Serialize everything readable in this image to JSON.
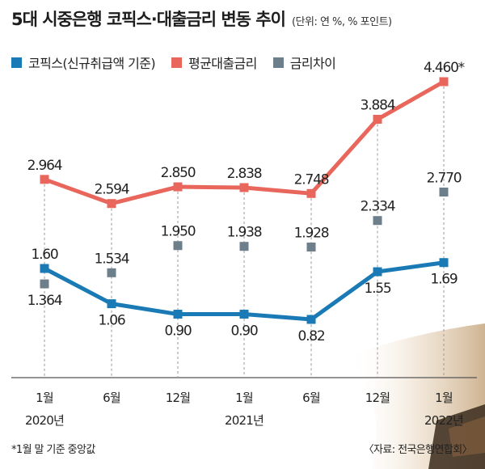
{
  "header": {
    "title": "5대 시중은행 코픽스·대출금리 변동 추이",
    "unit": "(단위: 연 %, % 포인트)"
  },
  "footnote": "*1월 말 기준 중앙값",
  "source": "〈자료: 전국은행연합회〉",
  "chart_data": {
    "type": "line",
    "categories": [
      "1월",
      "6월",
      "12월",
      "1월",
      "6월",
      "12월",
      "1월"
    ],
    "year_labels": [
      "2020년",
      "",
      "",
      "2021년",
      "",
      "",
      "2022년"
    ],
    "series": [
      {
        "name": "코픽스(신규취급액 기준)",
        "color": "#1a7ab5",
        "marker": "square",
        "values": [
          1.6,
          1.06,
          0.9,
          0.9,
          0.82,
          1.55,
          1.69
        ],
        "labels": [
          "1.60",
          "1.06",
          "0.90",
          "0.90",
          "0.82",
          "1.55",
          "1.69"
        ],
        "label_pos": [
          "above",
          "below",
          "below",
          "below",
          "below",
          "below",
          "below"
        ]
      },
      {
        "name": "평균대출금리",
        "color": "#e8665c",
        "marker": "square",
        "values": [
          2.964,
          2.594,
          2.85,
          2.838,
          2.748,
          3.884,
          4.46
        ],
        "labels": [
          "2.964",
          "2.594",
          "2.850",
          "2.838",
          "2.748",
          "3.884",
          "4.460*"
        ],
        "label_pos": [
          "above",
          "above",
          "above",
          "above",
          "above",
          "above",
          "above"
        ]
      },
      {
        "name": "금리차이",
        "color": "#6e7f8c",
        "marker": "square",
        "values": [
          1.364,
          1.534,
          1.95,
          1.938,
          1.928,
          2.334,
          2.77
        ],
        "labels": [
          "1.364",
          "1.534",
          "1.950",
          "1.938",
          "1.928",
          "2.334",
          "2.770"
        ],
        "label_pos": [
          "below",
          "above",
          "above",
          "above",
          "above",
          "above",
          "above"
        ],
        "show_line": false
      }
    ],
    "grid": false,
    "legend_position": "top-left"
  }
}
